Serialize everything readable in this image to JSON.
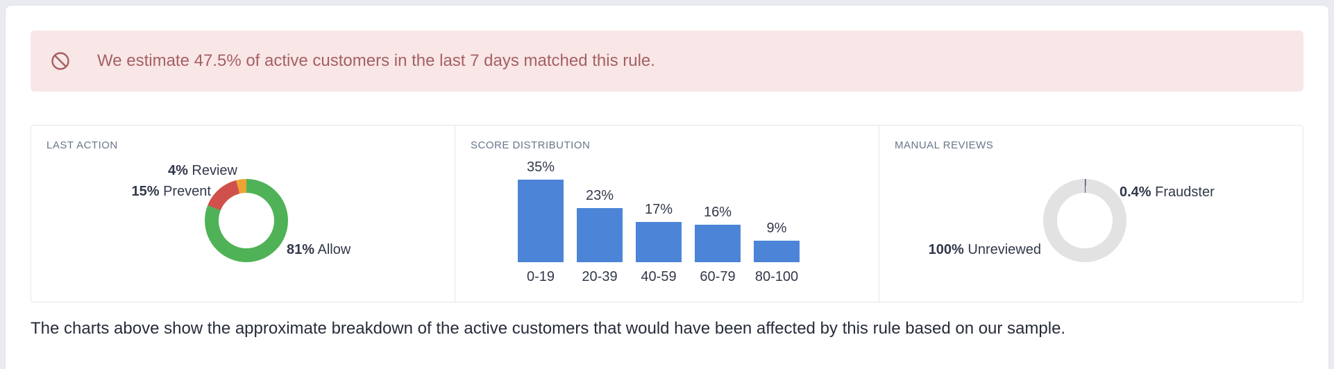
{
  "theme": {
    "page_bg": "#e9ebf1",
    "alert_bg": "#f9e6e6",
    "alert_text": "#a46063",
    "panel_border": "#e3e8ee",
    "heading_color": "#69758a",
    "text_color": "#32384a",
    "footer_color": "#272c3a"
  },
  "alert": {
    "icon": "circle-slash-icon",
    "text": "We estimate 47.5% of active customers in the last 7 days matched this rule."
  },
  "chart_data": [
    {
      "type": "pie",
      "style": "donut",
      "title": "LAST ACTION",
      "order": "clockwise-from-top",
      "segments": [
        {
          "label": "Allow",
          "display": "81%",
          "value": 81,
          "color": "#4fb257"
        },
        {
          "label": "Prevent",
          "display": "15%",
          "value": 15,
          "color": "#d0514b"
        },
        {
          "label": "Review",
          "display": "4%",
          "value": 4,
          "color": "#eea434"
        }
      ]
    },
    {
      "type": "bar",
      "title": "SCORE DISTRIBUTION",
      "categories": [
        "0-19",
        "20-39",
        "40-59",
        "60-79",
        "80-100"
      ],
      "values": [
        35,
        23,
        17,
        16,
        9
      ],
      "value_labels": [
        "35%",
        "23%",
        "17%",
        "16%",
        "9%"
      ],
      "unit": "%",
      "ylim": [
        0,
        35
      ],
      "bar_color": "#4c85d8"
    },
    {
      "type": "pie",
      "style": "donut",
      "title": "MANUAL REVIEWS",
      "order": "clockwise-from-top",
      "segments": [
        {
          "label": "Fraudster",
          "display": "0.4%",
          "value": 0.4,
          "color": "#44546a"
        },
        {
          "label": "Unreviewed",
          "display": "100%",
          "value": 100,
          "color": "#e2e2e2"
        }
      ]
    }
  ],
  "footer": {
    "text": "The charts above show the approximate breakdown of the active customers that would have been affected by this rule based on our sample."
  }
}
